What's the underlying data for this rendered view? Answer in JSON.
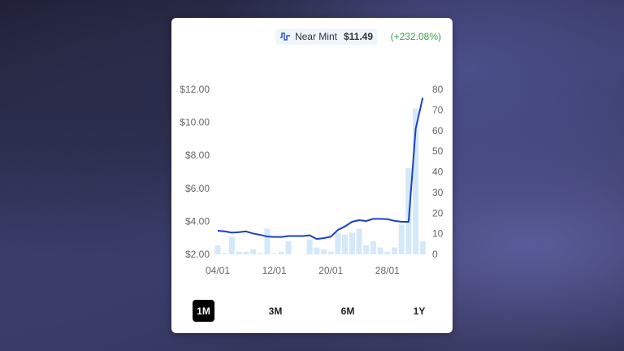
{
  "header": {
    "icon": "line-chart-icon",
    "condition": "Near Mint",
    "price": "$11.49",
    "change": "(+232.08%)",
    "change_color": "#3c9a4e"
  },
  "ranges": [
    {
      "label": "1M",
      "active": true
    },
    {
      "label": "3M",
      "active": false
    },
    {
      "label": "6M",
      "active": false
    },
    {
      "label": "1Y",
      "active": false
    }
  ],
  "chart_data": {
    "type": "line+bar",
    "colors": {
      "line": "#1e3fc0",
      "bars": "#d3e9fb"
    },
    "x_tick_labels": [
      "04/01",
      "12/01",
      "20/01",
      "28/01"
    ],
    "left_axis": {
      "ylim": [
        2,
        12
      ],
      "ticks": [
        "$2.00",
        "$4.00",
        "$6.00",
        "$8.00",
        "$10.00",
        "$12.00"
      ]
    },
    "right_axis": {
      "ylim": [
        0,
        80
      ],
      "ticks": [
        "0",
        "10",
        "20",
        "30",
        "40",
        "50",
        "60",
        "70",
        "80"
      ]
    },
    "grid": false,
    "series": [
      {
        "kind": "line",
        "axis": "left",
        "values": [
          3.43,
          3.39,
          3.31,
          3.34,
          3.39,
          3.26,
          3.18,
          3.08,
          3.05,
          3.05,
          3.11,
          3.11,
          3.11,
          3.15,
          2.93,
          2.98,
          3.07,
          3.48,
          3.69,
          3.97,
          4.07,
          4.02,
          4.15,
          4.15,
          4.13,
          4.03,
          3.97,
          3.97,
          9.62,
          11.49
        ]
      },
      {
        "kind": "bar",
        "axis": "right",
        "values": [
          4.3,
          0.5,
          8.4,
          1.3,
          1.3,
          2.4,
          0.5,
          12.5,
          0.5,
          1.3,
          6.3,
          0,
          0,
          7.2,
          3.3,
          2.4,
          1.3,
          10.5,
          9.5,
          10.5,
          12.4,
          4.3,
          6.3,
          3.3,
          1.3,
          3.3,
          14.5,
          41.8,
          70.8,
          6.3
        ]
      }
    ]
  }
}
